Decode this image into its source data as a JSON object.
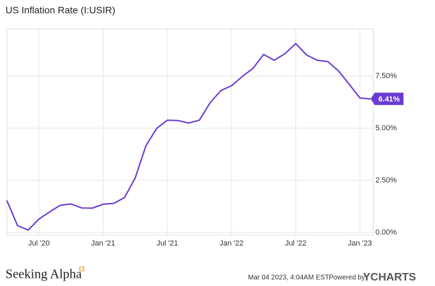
{
  "chart_data": {
    "type": "line",
    "title": "US Inflation Rate (I:USIR)",
    "x": [
      "2020-03",
      "2020-04",
      "2020-05",
      "2020-06",
      "2020-07",
      "2020-08",
      "2020-09",
      "2020-10",
      "2020-11",
      "2020-12",
      "2021-01",
      "2021-02",
      "2021-03",
      "2021-04",
      "2021-05",
      "2021-06",
      "2021-07",
      "2021-08",
      "2021-09",
      "2021-10",
      "2021-11",
      "2021-12",
      "2022-01",
      "2022-02",
      "2022-03",
      "2022-04",
      "2022-05",
      "2022-06",
      "2022-07",
      "2022-08",
      "2022-09",
      "2022-10",
      "2022-11",
      "2022-12",
      "2023-01"
    ],
    "series": [
      {
        "name": "US Inflation Rate",
        "color": "#6a3bd1",
        "values": [
          1.54,
          0.33,
          0.12,
          0.65,
          0.99,
          1.31,
          1.37,
          1.18,
          1.17,
          1.36,
          1.4,
          1.68,
          2.62,
          4.16,
          4.99,
          5.39,
          5.37,
          5.25,
          5.39,
          6.22,
          6.81,
          7.04,
          7.48,
          7.87,
          8.54,
          8.26,
          8.58,
          9.06,
          8.52,
          8.26,
          8.2,
          7.75,
          7.11,
          6.45,
          6.41
        ],
        "value_labels": [
          null,
          null,
          null,
          null,
          null,
          null,
          null,
          null,
          null,
          null,
          null,
          null,
          null,
          null,
          null,
          null,
          null,
          null,
          null,
          null,
          null,
          null,
          null,
          null,
          null,
          null,
          null,
          null,
          null,
          null,
          null,
          null,
          null,
          null,
          "6.41%"
        ]
      }
    ],
    "xlim": [
      "2020-04",
      "2023-02"
    ],
    "xticks": [
      {
        "value": "2020-07",
        "label": "Jul '20"
      },
      {
        "value": "2021-01",
        "label": "Jan '21"
      },
      {
        "value": "2021-07",
        "label": "Jul '21"
      },
      {
        "value": "2022-01",
        "label": "Jan '22"
      },
      {
        "value": "2022-07",
        "label": "Jul '22"
      },
      {
        "value": "2023-01",
        "label": "Jan '23"
      }
    ],
    "ylim": [
      -0.13,
      9.77
    ],
    "yticks": [
      {
        "value": 0,
        "label": "0.00%"
      },
      {
        "value": 2.5,
        "label": "2.50%"
      },
      {
        "value": 5,
        "label": "5.00%"
      },
      {
        "value": 7.5,
        "label": "7.50%"
      }
    ],
    "grid": true,
    "brand": "Seeking Alpha",
    "brand_mark": "α",
    "timestamp": "Mar 04 2023, 4:04AM EST.",
    "powered_by": "Powered by",
    "provider": "YCHARTS"
  }
}
